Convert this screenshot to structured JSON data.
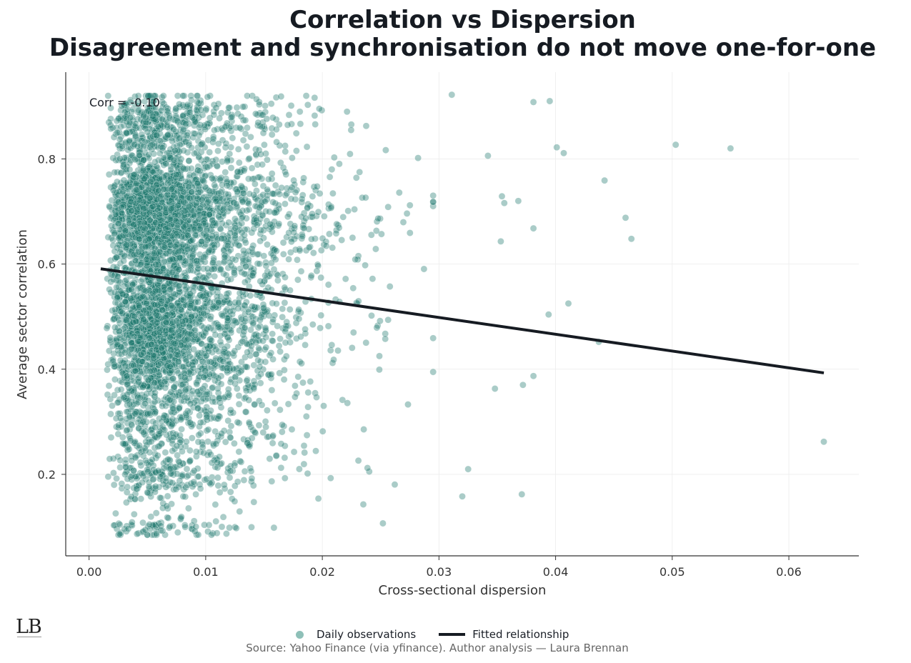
{
  "chart_data": {
    "type": "scatter",
    "title": "Correlation vs Dispersion",
    "subtitle": "Disagreement and synchronisation do not move one-for-one",
    "xlabel": "Cross-sectional dispersion",
    "ylabel": "Average sector correlation",
    "xlim": [
      -0.002,
      0.066
    ],
    "ylim": [
      0.045,
      0.965
    ],
    "xticks": [
      0.0,
      0.01,
      0.02,
      0.03,
      0.04,
      0.05,
      0.06
    ],
    "xtick_labels": [
      "0.00",
      "0.01",
      "0.02",
      "0.03",
      "0.04",
      "0.05",
      "0.06"
    ],
    "yticks": [
      0.2,
      0.4,
      0.6,
      0.8
    ],
    "ytick_labels": [
      "0.2",
      "0.4",
      "0.6",
      "0.8"
    ],
    "grid": true,
    "annotation": "Corr = -0.10",
    "series": [
      {
        "name": "Daily observations",
        "kind": "scatter",
        "color": "#1f7a6e",
        "approx_count": 5200,
        "x_range": [
          0.001,
          0.063
        ],
        "y_range": [
          0.085,
          0.92
        ],
        "outliers": [
          {
            "x": 0.0503,
            "y": 0.827
          },
          {
            "x": 0.055,
            "y": 0.82
          },
          {
            "x": 0.063,
            "y": 0.262
          },
          {
            "x": 0.0442,
            "y": 0.759
          },
          {
            "x": 0.0465,
            "y": 0.648
          },
          {
            "x": 0.046,
            "y": 0.688
          },
          {
            "x": 0.0411,
            "y": 0.525
          },
          {
            "x": 0.0394,
            "y": 0.504
          },
          {
            "x": 0.0437,
            "y": 0.452
          },
          {
            "x": 0.0401,
            "y": 0.822
          },
          {
            "x": 0.0407,
            "y": 0.811
          },
          {
            "x": 0.0381,
            "y": 0.908
          },
          {
            "x": 0.0395,
            "y": 0.91
          },
          {
            "x": 0.0371,
            "y": 0.162
          },
          {
            "x": 0.0381,
            "y": 0.387
          },
          {
            "x": 0.0372,
            "y": 0.37
          },
          {
            "x": 0.0381,
            "y": 0.668
          },
          {
            "x": 0.0354,
            "y": 0.729
          },
          {
            "x": 0.0356,
            "y": 0.716
          },
          {
            "x": 0.0353,
            "y": 0.643
          },
          {
            "x": 0.0368,
            "y": 0.72
          },
          {
            "x": 0.0311,
            "y": 0.922
          },
          {
            "x": 0.0325,
            "y": 0.21
          },
          {
            "x": 0.032,
            "y": 0.158
          },
          {
            "x": 0.0348,
            "y": 0.363
          },
          {
            "x": 0.0342,
            "y": 0.806
          }
        ]
      },
      {
        "name": "Fitted relationship",
        "kind": "line",
        "color": "#161b22",
        "x": [
          0.001,
          0.063
        ],
        "y": [
          0.591,
          0.393
        ]
      }
    ]
  },
  "legend": {
    "scatter_label": "Daily observations",
    "line_label": "Fitted relationship"
  },
  "footer": {
    "source": "Source: Yahoo Finance (via yfinance). Author analysis — Laura Brennan",
    "logo": "LB"
  }
}
